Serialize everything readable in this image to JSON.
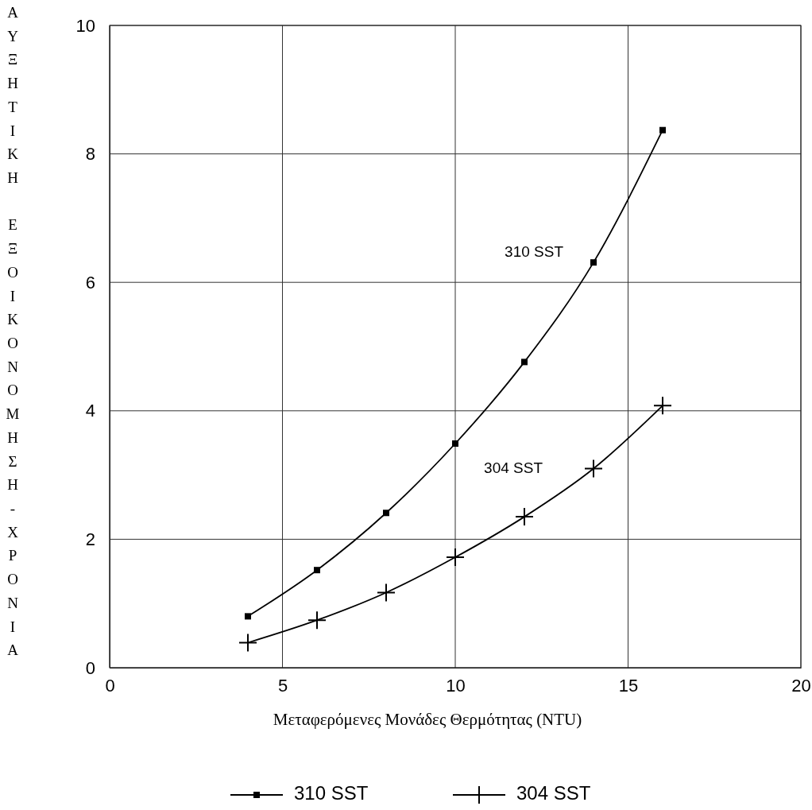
{
  "chart_data": {
    "type": "line",
    "xlabel": "Μεταφερόμενες Μονάδες Θερμότητας (NTU)",
    "ylabel": "ΑΥΞΗΤΙΚΗ ΕΞΟΙΚΟΝΟΜΗΣΗ-ΧΡΟΝΙΑ",
    "x": [
      4,
      6,
      8,
      10,
      12,
      14,
      16
    ],
    "series": [
      {
        "name": "310 SST",
        "color": "#000000",
        "marker": "square",
        "values": [
          0.8,
          1.52,
          2.41,
          3.49,
          4.76,
          6.31,
          8.37
        ]
      },
      {
        "name": "304 SST",
        "color": "#000000",
        "marker": "cross",
        "values": [
          0.39,
          0.74,
          1.17,
          1.72,
          2.35,
          3.1,
          4.08
        ]
      }
    ],
    "xlim": [
      0,
      20
    ],
    "xticks": [
      0,
      5,
      10,
      15,
      20
    ],
    "ylim": [
      0,
      10
    ],
    "yticks": [
      0,
      2,
      4,
      6,
      8,
      10
    ],
    "grid": true,
    "legend": "bottom"
  }
}
